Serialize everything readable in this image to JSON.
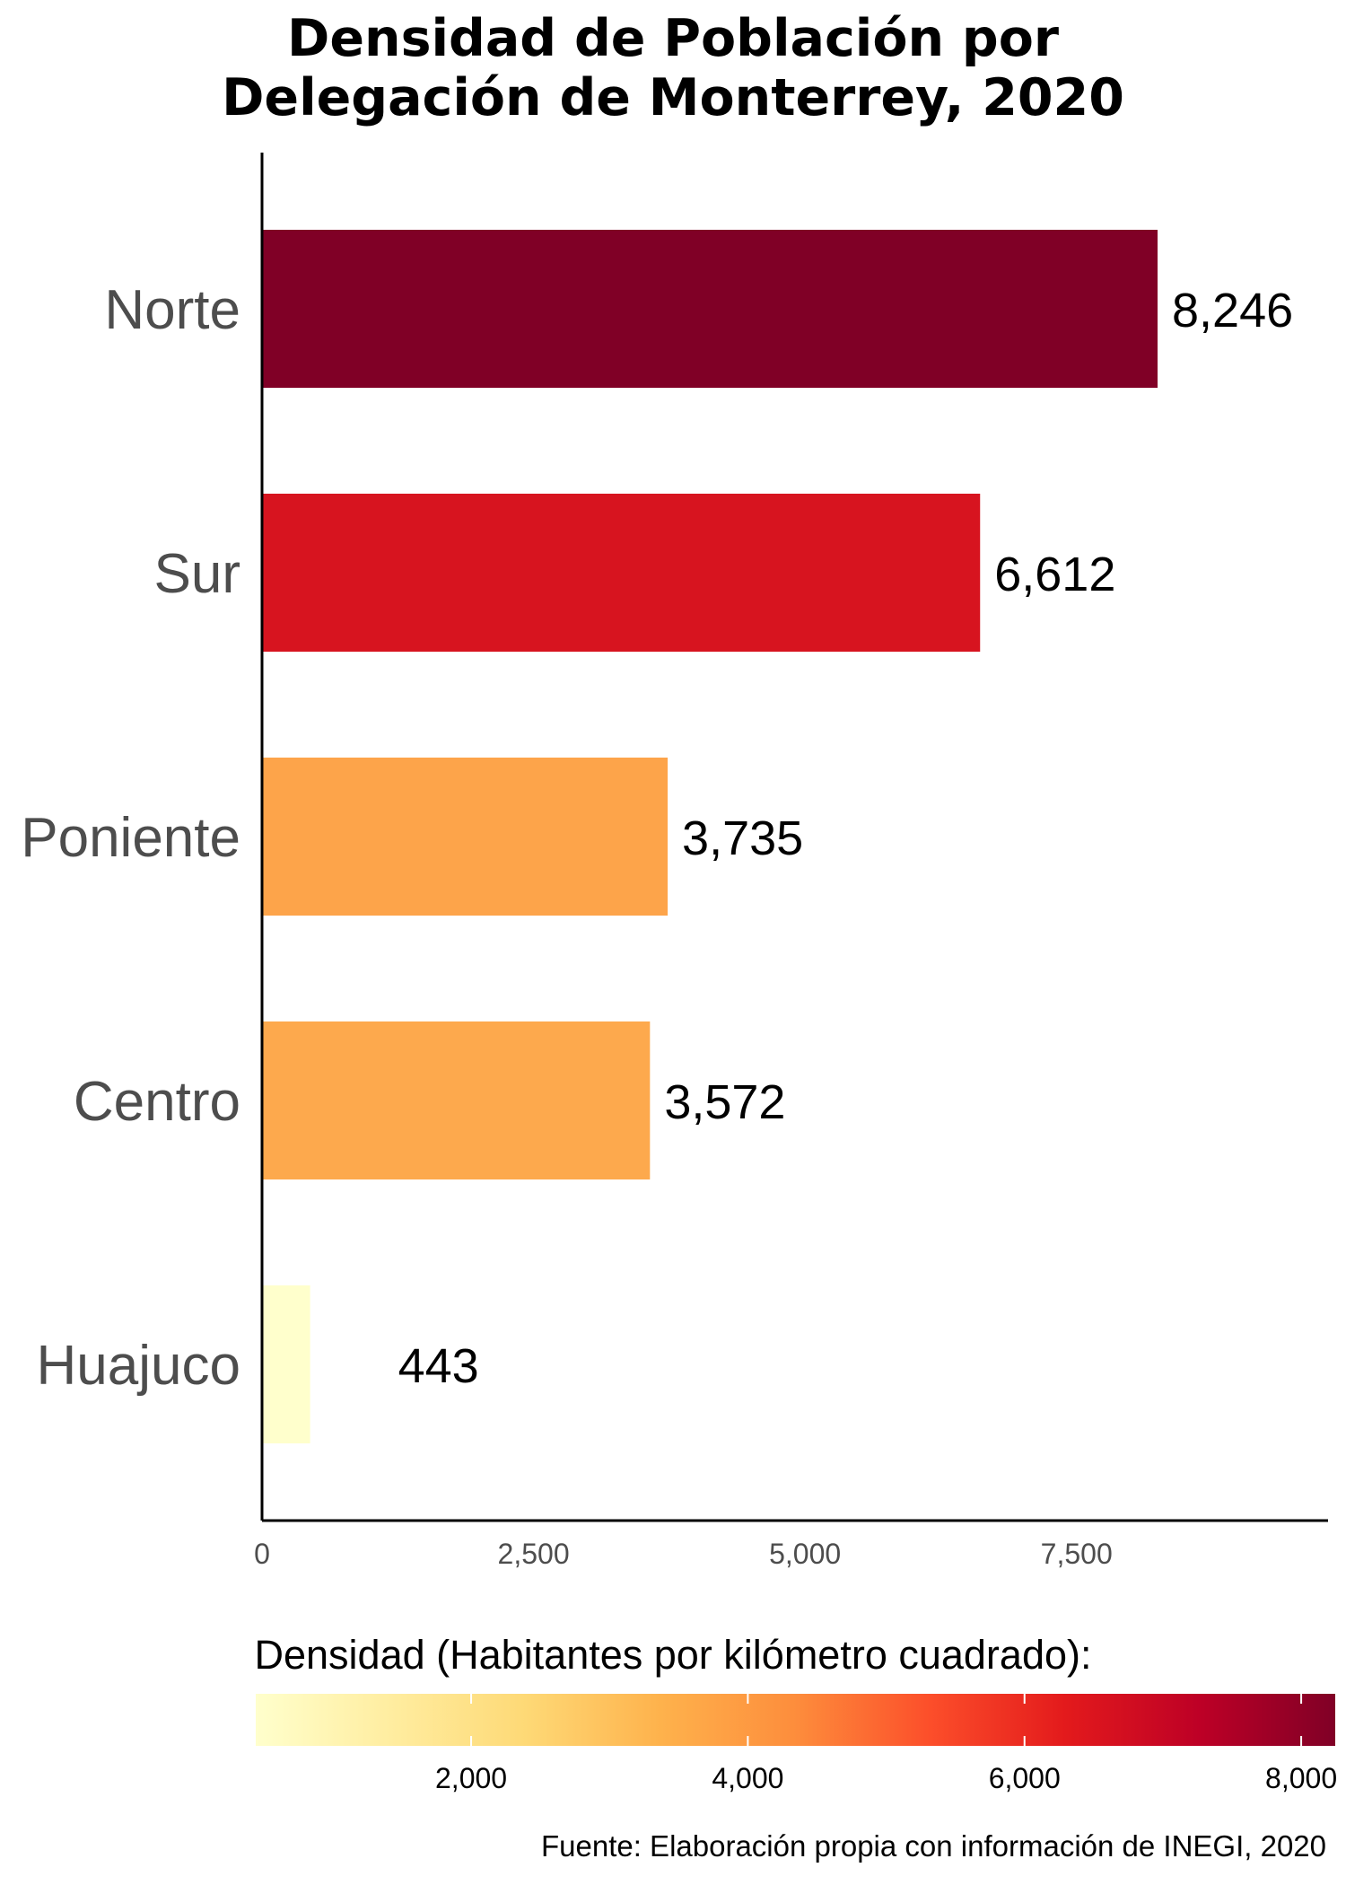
{
  "chart_data": {
    "type": "bar",
    "orientation": "horizontal",
    "title_lines": [
      "Densidad de Población por",
      "Delegación de Monterrey, 2020"
    ],
    "categories": [
      "Norte",
      "Sur",
      "Poniente",
      "Centro",
      "Huajuco"
    ],
    "values": [
      8246,
      6612,
      3735,
      3572,
      443
    ],
    "value_labels": [
      "8,246",
      "6,612",
      "3,735",
      "3,572",
      "443"
    ],
    "bar_colors": [
      "#800026",
      "#d7141f",
      "#fda44a",
      "#fda94d",
      "#ffffcc"
    ],
    "x_ticks": [
      0,
      2500,
      5000,
      7500
    ],
    "x_tick_labels": [
      "0",
      "2,500",
      "5,000",
      "7,500"
    ],
    "xlim": [
      0,
      9700
    ],
    "grid": false,
    "legend": {
      "title": "Densidad (Habitantes por kilómetro cuadrado):",
      "position": "bottom",
      "range": [
        443,
        8246
      ],
      "ticks": [
        2000,
        4000,
        6000,
        8000
      ],
      "tick_labels": [
        "2,000",
        "4,000",
        "6,000",
        "8,000"
      ],
      "gradient": [
        "#ffffcc",
        "#ffeda0",
        "#fed976",
        "#feb24c",
        "#fd8d3c",
        "#fc4e2a",
        "#e31a1c",
        "#bd0026",
        "#800026"
      ]
    },
    "caption": "Fuente: Elaboración propia con información de INEGI, 2020"
  }
}
